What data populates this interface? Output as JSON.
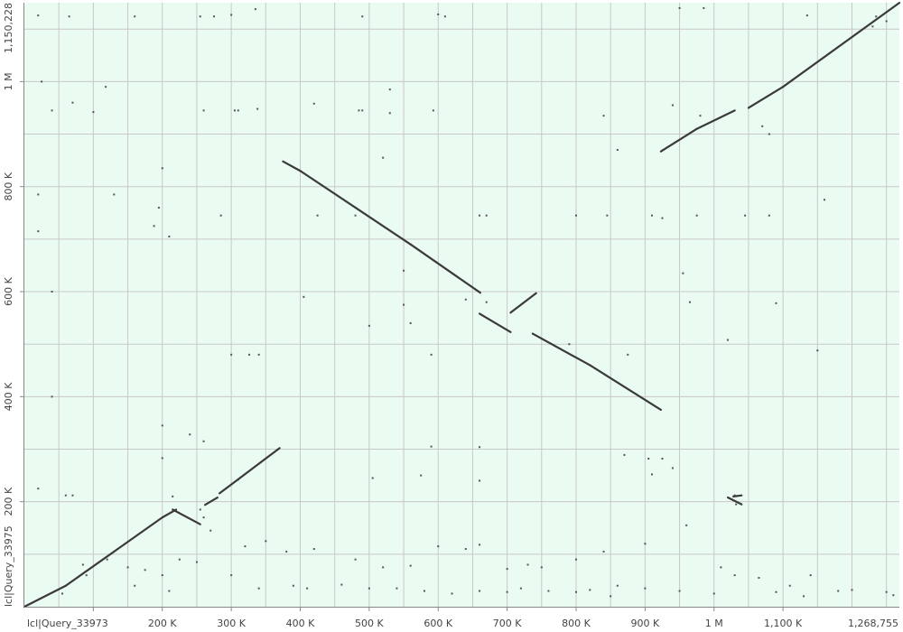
{
  "chart_data": {
    "type": "scatter",
    "subtype": "dot-plot alignment",
    "x_axis": {
      "label": "lcl|Query_33973",
      "range": [
        0,
        1268755
      ],
      "end_label": "1,268,755",
      "ticks": [
        {
          "value": 100000,
          "label": ""
        },
        {
          "value": 200000,
          "label": "200 K"
        },
        {
          "value": 300000,
          "label": "300 K"
        },
        {
          "value": 400000,
          "label": "400 K"
        },
        {
          "value": 500000,
          "label": "500 K"
        },
        {
          "value": 600000,
          "label": "600 K"
        },
        {
          "value": 700000,
          "label": "700 K"
        },
        {
          "value": 800000,
          "label": "800 K"
        },
        {
          "value": 900000,
          "label": "900 K"
        },
        {
          "value": 1000000,
          "label": "1 M"
        },
        {
          "value": 1100000,
          "label": "1,100 K"
        }
      ],
      "minor_step": 50000
    },
    "y_axis": {
      "label": "lcl|Query_33975",
      "range": [
        0,
        1150228
      ],
      "end_label": "1,150,228",
      "ticks": [
        {
          "value": 200000,
          "label": "200 K"
        },
        {
          "value": 400000,
          "label": "400 K"
        },
        {
          "value": 600000,
          "label": "600 K"
        },
        {
          "value": 800000,
          "label": "800 K"
        },
        {
          "value": 1000000,
          "label": "1 M"
        }
      ],
      "minor_step": 100000
    },
    "grid": true,
    "background_color": "#eafbf2",
    "grid_color": "#c8c8c8",
    "line_color": "#3a3a3a",
    "segments": [
      {
        "x": [
          0,
          60000
        ],
        "y": [
          0,
          40000
        ]
      },
      {
        "x": [
          60000,
          200000
        ],
        "y": [
          40000,
          170000
        ]
      },
      {
        "x": [
          200000,
          220000
        ],
        "y": [
          170000,
          185000
        ]
      },
      {
        "x": [
          215000,
          255000
        ],
        "y": [
          185000,
          157000
        ]
      },
      {
        "x": [
          262000,
          280000
        ],
        "y": [
          194000,
          208000
        ]
      },
      {
        "x": [
          283000,
          370000
        ],
        "y": [
          216000,
          302000
        ]
      },
      {
        "x": [
          375000,
          400000
        ],
        "y": [
          848000,
          830000
        ]
      },
      {
        "x": [
          400000,
          480000
        ],
        "y": [
          830000,
          760000
        ]
      },
      {
        "x": [
          480000,
          560000
        ],
        "y": [
          760000,
          690000
        ]
      },
      {
        "x": [
          560000,
          661000
        ],
        "y": [
          690000,
          598000
        ]
      },
      {
        "x": [
          660000,
          705000
        ],
        "y": [
          558000,
          523000
        ]
      },
      {
        "x": [
          705000,
          742000
        ],
        "y": [
          560000,
          597000
        ]
      },
      {
        "x": [
          737000,
          820000
        ],
        "y": [
          520000,
          460000
        ]
      },
      {
        "x": [
          820000,
          923000
        ],
        "y": [
          460000,
          375000
        ]
      },
      {
        "x": [
          923000,
          975000
        ],
        "y": [
          867000,
          910000
        ]
      },
      {
        "x": [
          975000,
          1030000
        ],
        "y": [
          910000,
          945000
        ]
      },
      {
        "x": [
          1050000,
          1100000
        ],
        "y": [
          950000,
          990000
        ]
      },
      {
        "x": [
          1100000,
          1268755
        ],
        "y": [
          990000,
          1150000
        ]
      },
      {
        "x": [
          1020000,
          1040000
        ],
        "y": [
          208000,
          195000
        ]
      },
      {
        "x": [
          1028000,
          1040000
        ],
        "y": [
          210000,
          212000
        ]
      }
    ],
    "scatter_points": [
      [
        20000,
        1126000
      ],
      [
        65000,
        1124000
      ],
      [
        160000,
        1124000
      ],
      [
        255000,
        1124000
      ],
      [
        275000,
        1124000
      ],
      [
        300000,
        1127000
      ],
      [
        335000,
        1138000
      ],
      [
        490000,
        1124000
      ],
      [
        600000,
        1128000
      ],
      [
        610000,
        1124000
      ],
      [
        950000,
        1140000
      ],
      [
        985000,
        1140000
      ],
      [
        1135000,
        1126000
      ],
      [
        1235000,
        1124000
      ],
      [
        25000,
        1000000
      ],
      [
        118000,
        990000
      ],
      [
        70000,
        960000
      ],
      [
        420000,
        958000
      ],
      [
        530000,
        985000
      ],
      [
        530000,
        940000
      ],
      [
        40000,
        945000
      ],
      [
        100000,
        942000
      ],
      [
        260000,
        945000
      ],
      [
        305000,
        945000
      ],
      [
        310000,
        945000
      ],
      [
        338000,
        948000
      ],
      [
        485000,
        945000
      ],
      [
        490000,
        945000
      ],
      [
        593000,
        945000
      ],
      [
        840000,
        935000
      ],
      [
        940000,
        955000
      ],
      [
        980000,
        935000
      ],
      [
        860000,
        870000
      ],
      [
        1070000,
        915000
      ],
      [
        1080000,
        900000
      ],
      [
        1230000,
        1105000
      ],
      [
        1250000,
        1115000
      ],
      [
        200000,
        835000
      ],
      [
        20000,
        785000
      ],
      [
        20000,
        715000
      ],
      [
        130000,
        785000
      ],
      [
        520000,
        855000
      ],
      [
        195000,
        760000
      ],
      [
        188000,
        725000
      ],
      [
        425000,
        745000
      ],
      [
        480000,
        745000
      ],
      [
        660000,
        745000
      ],
      [
        670000,
        745000
      ],
      [
        800000,
        745000
      ],
      [
        845000,
        745000
      ],
      [
        910000,
        745000
      ],
      [
        925000,
        740000
      ],
      [
        975000,
        745000
      ],
      [
        1045000,
        745000
      ],
      [
        1080000,
        745000
      ],
      [
        1160000,
        775000
      ],
      [
        285000,
        745000
      ],
      [
        210000,
        705000
      ],
      [
        40000,
        600000
      ],
      [
        550000,
        640000
      ],
      [
        405000,
        590000
      ],
      [
        500000,
        535000
      ],
      [
        640000,
        585000
      ],
      [
        670000,
        580000
      ],
      [
        955000,
        635000
      ],
      [
        965000,
        580000
      ],
      [
        1020000,
        508000
      ],
      [
        1090000,
        578000
      ],
      [
        1150000,
        488000
      ],
      [
        300000,
        480000
      ],
      [
        326000,
        480000
      ],
      [
        340000,
        480000
      ],
      [
        590000,
        480000
      ],
      [
        790000,
        500000
      ],
      [
        875000,
        480000
      ],
      [
        550000,
        575000
      ],
      [
        560000,
        540000
      ],
      [
        40000,
        400000
      ],
      [
        200000,
        345000
      ],
      [
        240000,
        328000
      ],
      [
        260000,
        315000
      ],
      [
        590000,
        305000
      ],
      [
        660000,
        304000
      ],
      [
        870000,
        289000
      ],
      [
        905000,
        282000
      ],
      [
        925000,
        282000
      ],
      [
        940000,
        264000
      ],
      [
        200000,
        283000
      ],
      [
        1030000,
        212000
      ],
      [
        1032000,
        195000
      ],
      [
        20000,
        225000
      ],
      [
        60000,
        212000
      ],
      [
        70000,
        212000
      ],
      [
        215000,
        210000
      ],
      [
        310000,
        242000
      ],
      [
        505000,
        245000
      ],
      [
        575000,
        250000
      ],
      [
        660000,
        240000
      ],
      [
        910000,
        252000
      ],
      [
        255000,
        185000
      ],
      [
        260000,
        170000
      ],
      [
        270000,
        145000
      ],
      [
        320000,
        115000
      ],
      [
        350000,
        125000
      ],
      [
        380000,
        105000
      ],
      [
        420000,
        110000
      ],
      [
        480000,
        90000
      ],
      [
        520000,
        75000
      ],
      [
        560000,
        78000
      ],
      [
        600000,
        115000
      ],
      [
        640000,
        110000
      ],
      [
        660000,
        118000
      ],
      [
        700000,
        72000
      ],
      [
        730000,
        80000
      ],
      [
        750000,
        75000
      ],
      [
        800000,
        90000
      ],
      [
        840000,
        105000
      ],
      [
        900000,
        120000
      ],
      [
        960000,
        155000
      ],
      [
        85000,
        80000
      ],
      [
        90000,
        60000
      ],
      [
        120000,
        90000
      ],
      [
        150000,
        75000
      ],
      [
        175000,
        70000
      ],
      [
        200000,
        60000
      ],
      [
        225000,
        90000
      ],
      [
        250000,
        85000
      ],
      [
        300000,
        60000
      ],
      [
        340000,
        35000
      ],
      [
        390000,
        40000
      ],
      [
        410000,
        35000
      ],
      [
        460000,
        42000
      ],
      [
        500000,
        35000
      ],
      [
        540000,
        35000
      ],
      [
        580000,
        30000
      ],
      [
        620000,
        25000
      ],
      [
        660000,
        30000
      ],
      [
        700000,
        28000
      ],
      [
        720000,
        35000
      ],
      [
        760000,
        30000
      ],
      [
        800000,
        28000
      ],
      [
        820000,
        32000
      ],
      [
        860000,
        40000
      ],
      [
        900000,
        35000
      ],
      [
        950000,
        30000
      ],
      [
        1000000,
        25000
      ],
      [
        1030000,
        60000
      ],
      [
        1065000,
        55000
      ],
      [
        1090000,
        28000
      ],
      [
        1110000,
        40000
      ],
      [
        1130000,
        20000
      ],
      [
        1180000,
        30000
      ],
      [
        1200000,
        32000
      ],
      [
        1250000,
        28000
      ],
      [
        1260000,
        22000
      ],
      [
        55000,
        25000
      ],
      [
        160000,
        40000
      ],
      [
        210000,
        30000
      ],
      [
        850000,
        20000
      ],
      [
        1010000,
        75000
      ],
      [
        1140000,
        60000
      ]
    ]
  }
}
